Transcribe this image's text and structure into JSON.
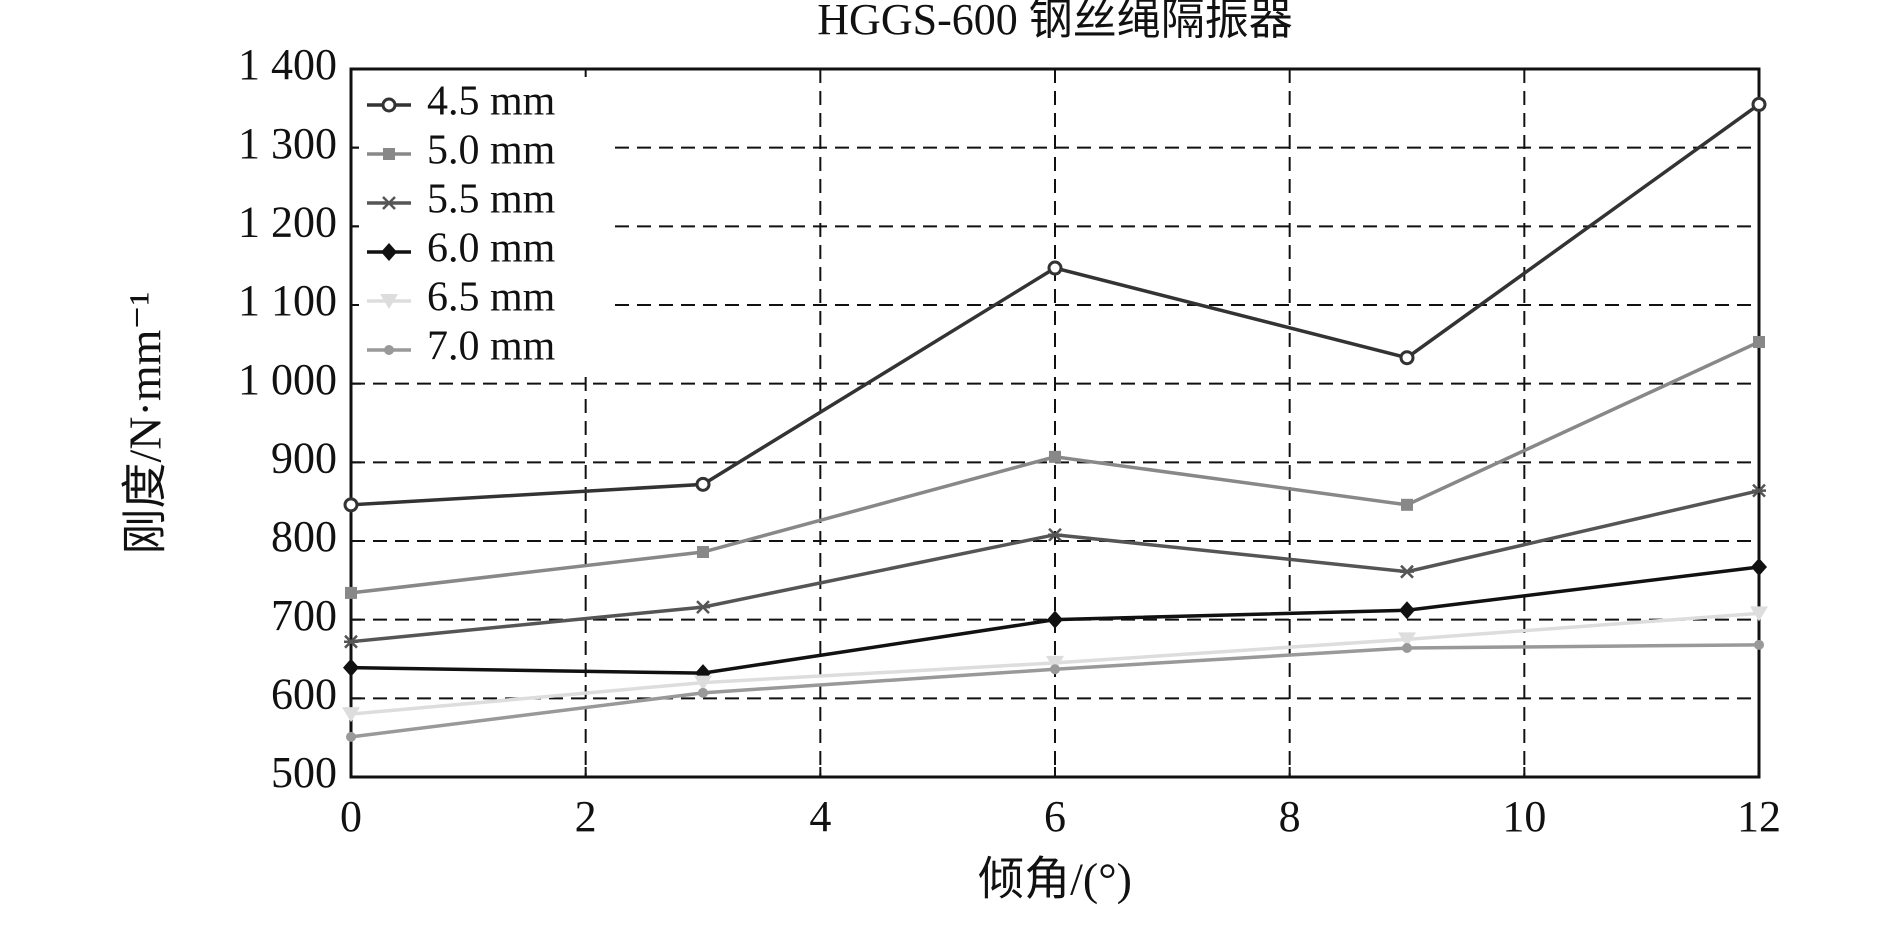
{
  "chart_data": {
    "type": "line",
    "title": "HGGS-600 钢丝绳隔振器",
    "x_label": "倾角/(°)",
    "y_label": "刚度/N·mm⁻¹",
    "x": [
      0,
      3,
      6,
      9,
      12
    ],
    "series": [
      {
        "name": "4.5 mm",
        "color": "#333333",
        "marker": "circle-open",
        "values": [
          846,
          872,
          1147,
          1033,
          1355
        ]
      },
      {
        "name": "5.0 mm",
        "color": "#888888",
        "marker": "square",
        "values": [
          734,
          786,
          907,
          846,
          1053
        ]
      },
      {
        "name": "5.5 mm",
        "color": "#555555",
        "marker": "star",
        "values": [
          672,
          716,
          808,
          761,
          864
        ]
      },
      {
        "name": "6.0 mm",
        "color": "#111111",
        "marker": "diamond",
        "values": [
          639,
          632,
          700,
          712,
          767
        ]
      },
      {
        "name": "6.5 mm",
        "color": "#dddddd",
        "marker": "triangle-down",
        "values": [
          580,
          620,
          645,
          675,
          708
        ]
      },
      {
        "name": "7.0 mm",
        "color": "#999999",
        "marker": "dot",
        "values": [
          551,
          607,
          637,
          664,
          668
        ]
      }
    ],
    "xlim": [
      0,
      12
    ],
    "xticks": [
      0,
      2,
      4,
      6,
      8,
      10,
      12
    ],
    "ylim": [
      500,
      1400
    ],
    "yticks": [
      500,
      600,
      700,
      800,
      900,
      {
        "value": 1000,
        "label": "1 000"
      },
      {
        "value": 1100,
        "label": "1 100"
      },
      {
        "value": 1200,
        "label": "1 200"
      },
      {
        "value": 1300,
        "label": "1 300"
      },
      {
        "value": 1400,
        "label": "1 400"
      }
    ],
    "grid": true,
    "legend": "upper-left"
  }
}
